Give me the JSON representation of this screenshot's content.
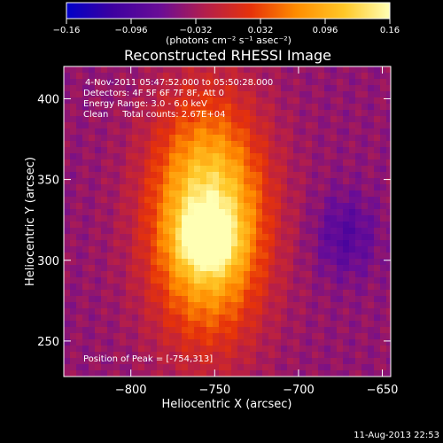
{
  "chart_data": {
    "type": "heatmap",
    "title": "Reconstructed RHESSI Image",
    "xlabel": "Heliocentric X (arcsec)",
    "ylabel": "Heliocentric Y (arcsec)",
    "xlim": [
      -840,
      -645
    ],
    "ylim": [
      228,
      420
    ],
    "x_ticks": [
      -800,
      -750,
      -700,
      -650
    ],
    "x_tick_labels": [
      "−800",
      "−750",
      "−700",
      "−650"
    ],
    "y_ticks": [
      250,
      300,
      350,
      400
    ],
    "y_tick_labels": [
      "250",
      "300",
      "350",
      "400"
    ],
    "colorbar": {
      "range": [
        -0.16,
        0.16
      ],
      "ticks": [
        -0.16,
        -0.096,
        -0.032,
        0.032,
        0.096,
        0.16
      ],
      "tick_labels": [
        "−0.16",
        "−0.096",
        "−0.032",
        "0.032",
        "0.096",
        "0.16"
      ],
      "unit_label": "(photons cm⁻² s⁻¹ asec⁻²)",
      "colors": [
        "#0000c8",
        "#3c00a0",
        "#6a0d96",
        "#b41e4b",
        "#e6320a",
        "#ff8c00",
        "#ffc828",
        "#ffffb4"
      ]
    },
    "annotations": {
      "time_range": "4-Nov-2011 05:47:52.000 to 05:50:28.000",
      "detectors": "Detectors: 4F 5F 6F 7F 8F, Att 0",
      "energy_range": "Energy Range: 3.0 - 6.0 keV",
      "clean_counts": "Clean     Total counts: 2.67E+04",
      "peak_position": "Position of Peak = [-754,313]"
    },
    "peak": [
      -754,
      313
    ],
    "grid": false,
    "timestamp": "11-Aug-2013 22:53"
  }
}
